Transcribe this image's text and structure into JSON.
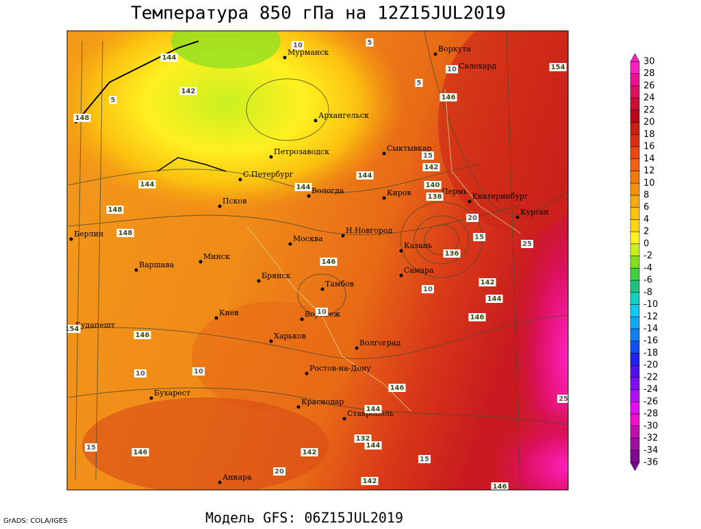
{
  "header": {
    "title": "Температура 850 гПа на 12Z15JUL2019"
  },
  "footer": {
    "model": "Модель GFS: 06Z15JUL2019",
    "credit": "GrADS: COLA/IGES"
  },
  "cities": [
    "Мурманск",
    "Воркута",
    "Салехард",
    "Архангельск",
    "Сыктывкар",
    "Петрозаводск",
    "С.Петербург",
    "Вологда",
    "Киров",
    "Пермь",
    "Екатеринбург",
    "Курган",
    "Псков",
    "Москва",
    "Н.Новгород",
    "Казань",
    "Берлин",
    "Варшава",
    "Минск",
    "Брянск",
    "Тамбов",
    "Самара",
    "Воронеж",
    "Киев",
    "Будапешт",
    "Харьков",
    "Волгоград",
    "Ростов-на-Дону",
    "Бухарест",
    "Краснодар",
    "Ставрополь",
    "Анкара"
  ],
  "contour_labels": [
    144,
    142,
    148,
    5,
    154,
    146,
    142,
    140,
    138,
    144,
    144,
    144,
    148,
    148,
    146,
    146,
    142,
    144,
    146,
    146,
    144,
    142,
    144,
    146,
    146,
    142,
    154,
    10,
    5,
    5,
    10,
    15,
    20,
    25,
    25,
    15,
    10,
    10,
    10,
    15,
    10,
    15,
    20,
    132,
    136
  ],
  "colorbar": {
    "labels": [
      30,
      28,
      26,
      24,
      22,
      20,
      18,
      16,
      14,
      12,
      10,
      8,
      6,
      4,
      2,
      0,
      -2,
      -4,
      -6,
      -8,
      -10,
      -12,
      -14,
      -16,
      -18,
      -20,
      -22,
      -24,
      -26,
      -28,
      -30,
      -32,
      -34,
      -36
    ],
    "colors": [
      "#ff20c0",
      "#ee1090",
      "#dd1060",
      "#c81030",
      "#b80818",
      "#c82010",
      "#d83010",
      "#e84a10",
      "#f06010",
      "#f07810",
      "#f59010",
      "#f8a810",
      "#fbc010",
      "#fdd810",
      "#fff020",
      "#c8f020",
      "#80e020",
      "#40d040",
      "#20c080",
      "#10d0c0",
      "#10c8f0",
      "#10a8f0",
      "#1080f0",
      "#1050f0",
      "#2020f0",
      "#5010f0",
      "#8010f0",
      "#b010f0",
      "#e010f0",
      "#f010d0",
      "#c010b0",
      "#a010a0",
      "#800890"
    ]
  }
}
